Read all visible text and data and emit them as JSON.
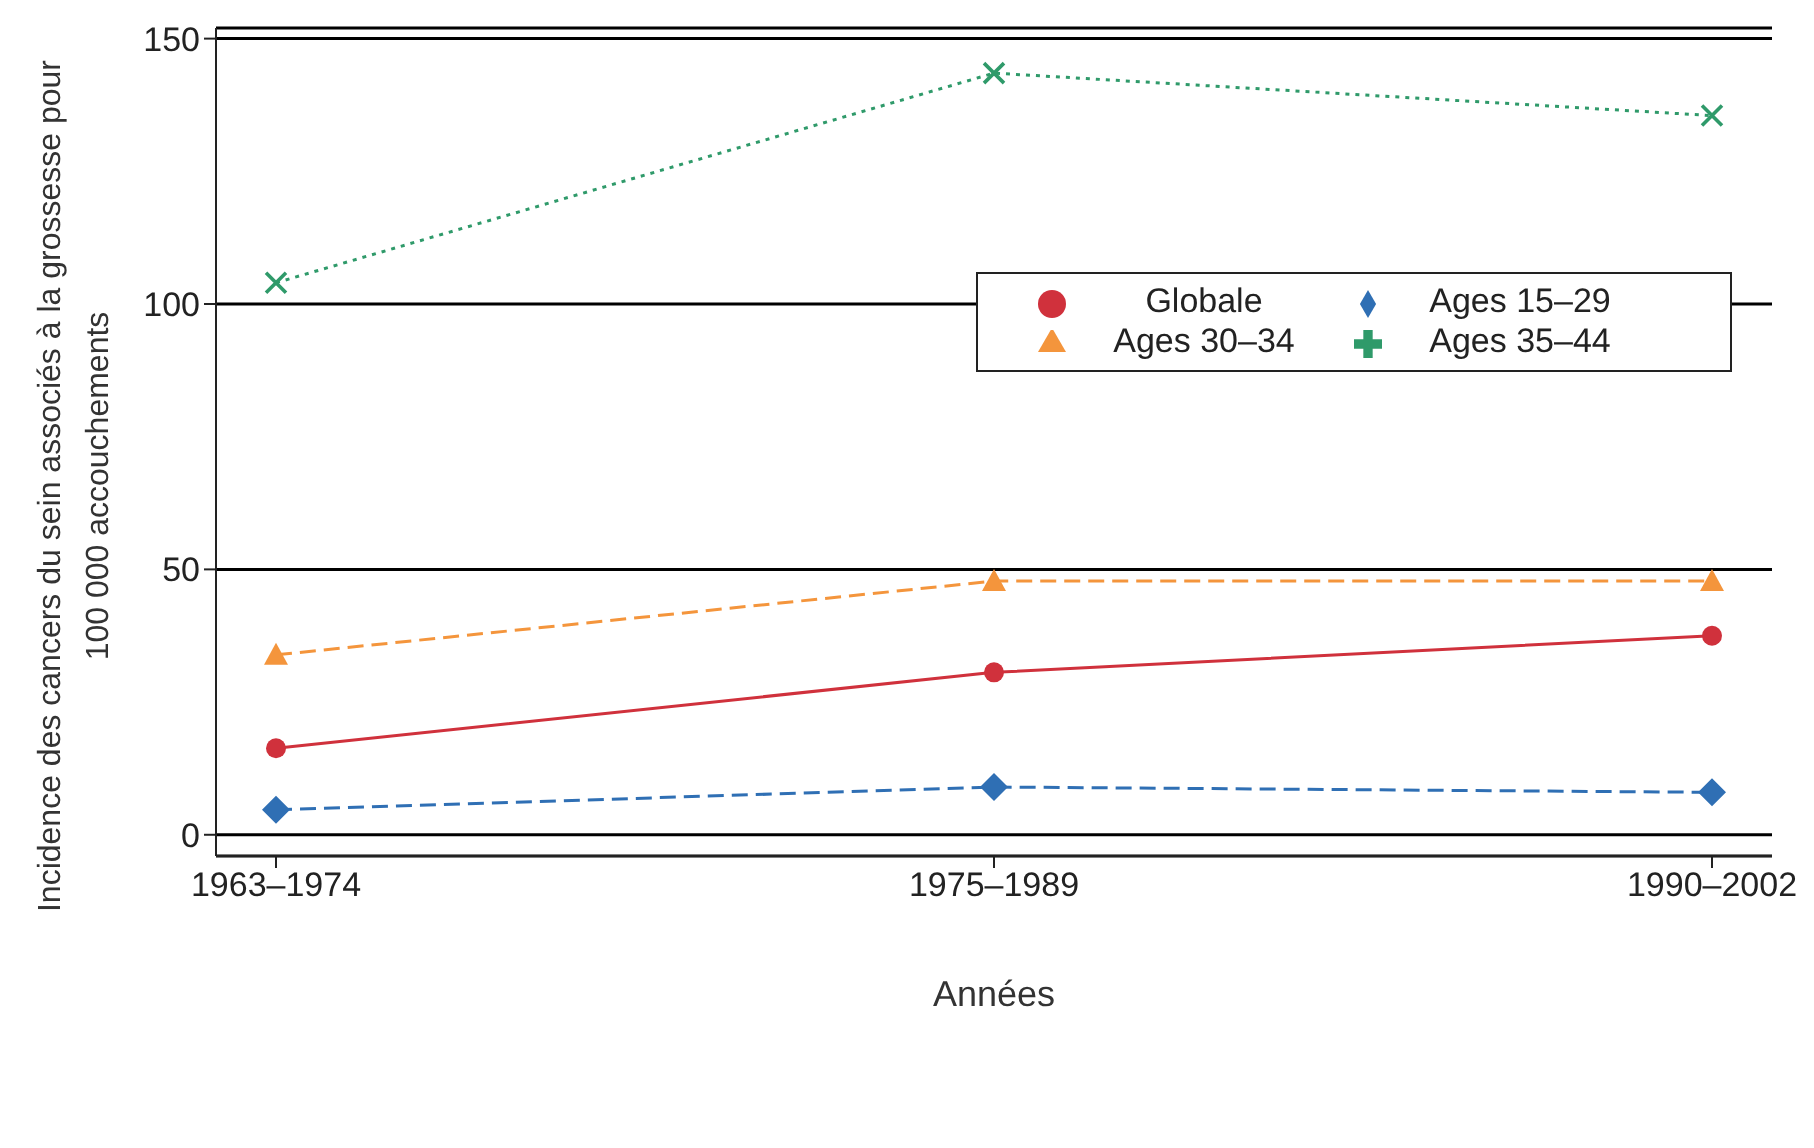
{
  "chart_data": {
    "type": "line",
    "xlabel": "Années",
    "ylabel": "Incidence des cancers du sein associés à la grossesse pour 100 000 accouchements",
    "categories": [
      "1963–1974",
      "1975–1989",
      "1990–2002"
    ],
    "series": [
      {
        "name": "Globale",
        "color": "#d0313c",
        "values": [
          16.3,
          30.6,
          37.5
        ],
        "marker": "circle",
        "line_style": "solid"
      },
      {
        "name": "Ages 15–29",
        "color": "#2f6fb4",
        "values": [
          4.7,
          9.0,
          8.0
        ],
        "marker": "diamond",
        "line_style": "dashed"
      },
      {
        "name": "Ages 30–34",
        "color": "#f4953c",
        "values": [
          33.9,
          47.8,
          47.8
        ],
        "marker": "triangle",
        "line_style": "dashed"
      },
      {
        "name": "Ages 35–44",
        "color": "#2f9a6a",
        "values": [
          104,
          143.5,
          135.5
        ],
        "marker": "cross",
        "line_style": "dotted"
      }
    ],
    "ylim": [
      -4,
      152
    ],
    "yticks": [
      0,
      50,
      100,
      150
    ],
    "grid": "y",
    "legend": "right"
  }
}
